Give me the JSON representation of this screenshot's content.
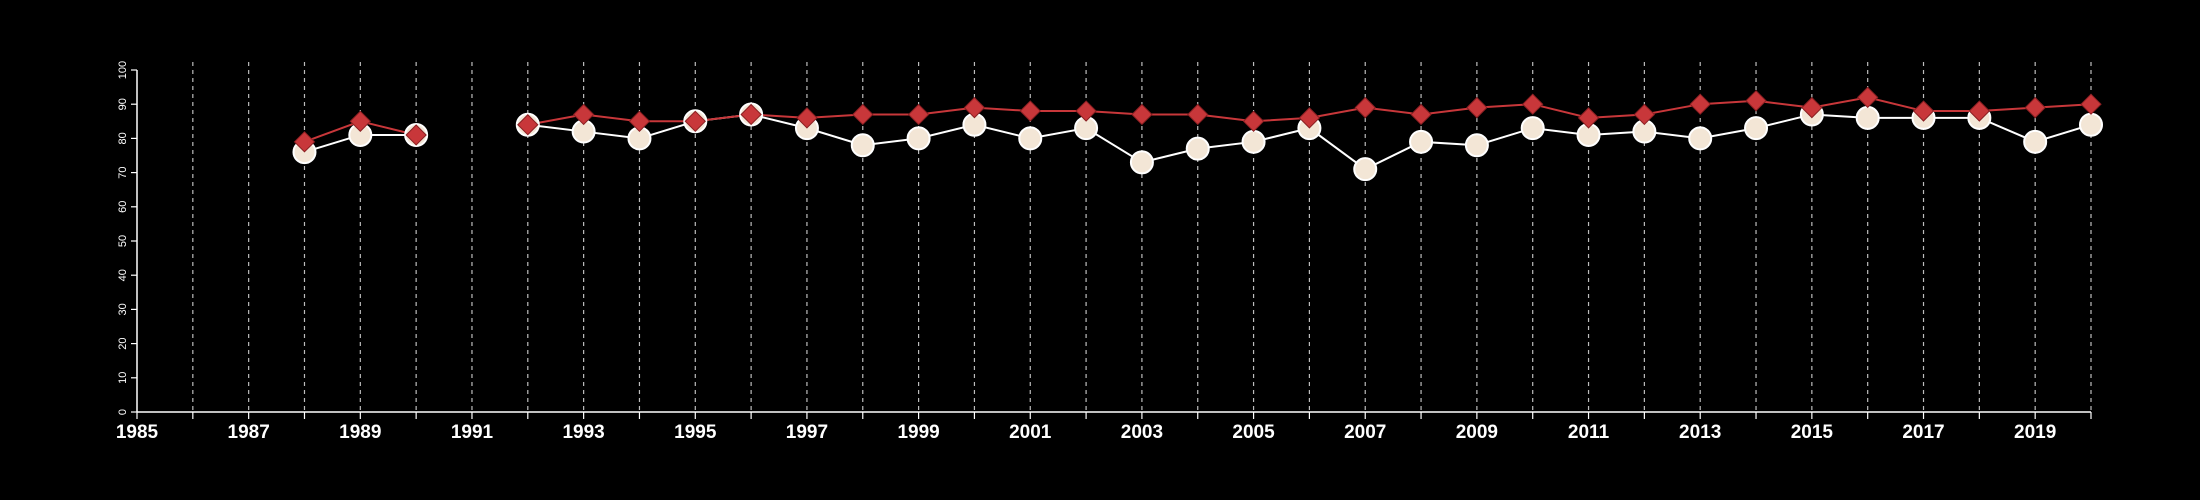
{
  "chart_data": {
    "type": "line",
    "title": "",
    "xlabel": "",
    "ylabel": "",
    "xlim": [
      1985,
      2020
    ],
    "ylim": [
      0,
      100
    ],
    "grid": "vertical dashed at each year",
    "legend": "none",
    "y_ticks": [
      0,
      10,
      20,
      30,
      40,
      50,
      60,
      70,
      80,
      90,
      100
    ],
    "x_tick_labels": [
      "1985",
      "1987",
      "1989",
      "1991",
      "1993",
      "1995",
      "1997",
      "1999",
      "2001",
      "2003",
      "2005",
      "2007",
      "2009",
      "2011",
      "2013",
      "2015",
      "2017",
      "2019"
    ],
    "series": [
      {
        "marker": "circle",
        "color": "#ffffff",
        "marker_fill": "#f3e6d6",
        "points": [
          [
            1988,
            76
          ],
          [
            1989,
            81
          ],
          [
            1990,
            81
          ],
          [
            1992,
            84
          ],
          [
            1993,
            82
          ],
          [
            1994,
            80
          ],
          [
            1995,
            85
          ],
          [
            1996,
            87
          ],
          [
            1997,
            83
          ],
          [
            1998,
            78
          ],
          [
            1999,
            80
          ],
          [
            2000,
            84
          ],
          [
            2001,
            80
          ],
          [
            2002,
            83
          ],
          [
            2003,
            73
          ],
          [
            2004,
            77
          ],
          [
            2005,
            79
          ],
          [
            2006,
            83
          ],
          [
            2007,
            71
          ],
          [
            2008,
            79
          ],
          [
            2009,
            78
          ],
          [
            2010,
            83
          ],
          [
            2011,
            81
          ],
          [
            2012,
            82
          ],
          [
            2013,
            80
          ],
          [
            2014,
            83
          ],
          [
            2015,
            87
          ],
          [
            2016,
            86
          ],
          [
            2017,
            86
          ],
          [
            2018,
            86
          ],
          [
            2019,
            79
          ],
          [
            2020,
            84
          ]
        ]
      },
      {
        "marker": "diamond",
        "color": "#c8373a",
        "marker_fill": "#c8373a",
        "points": [
          [
            1988,
            79
          ],
          [
            1989,
            85
          ],
          [
            1990,
            81
          ],
          [
            1992,
            84
          ],
          [
            1993,
            87
          ],
          [
            1994,
            85
          ],
          [
            1995,
            85
          ],
          [
            1996,
            87
          ],
          [
            1997,
            86
          ],
          [
            1998,
            87
          ],
          [
            1999,
            87
          ],
          [
            2000,
            89
          ],
          [
            2001,
            88
          ],
          [
            2002,
            88
          ],
          [
            2003,
            87
          ],
          [
            2004,
            87
          ],
          [
            2005,
            85
          ],
          [
            2006,
            86
          ],
          [
            2007,
            89
          ],
          [
            2008,
            87
          ],
          [
            2009,
            89
          ],
          [
            2010,
            90
          ],
          [
            2011,
            86
          ],
          [
            2012,
            87
          ],
          [
            2013,
            90
          ],
          [
            2014,
            91
          ],
          [
            2015,
            89
          ],
          [
            2016,
            92
          ],
          [
            2017,
            88
          ],
          [
            2018,
            88
          ],
          [
            2019,
            89
          ],
          [
            2020,
            90
          ]
        ]
      }
    ]
  }
}
